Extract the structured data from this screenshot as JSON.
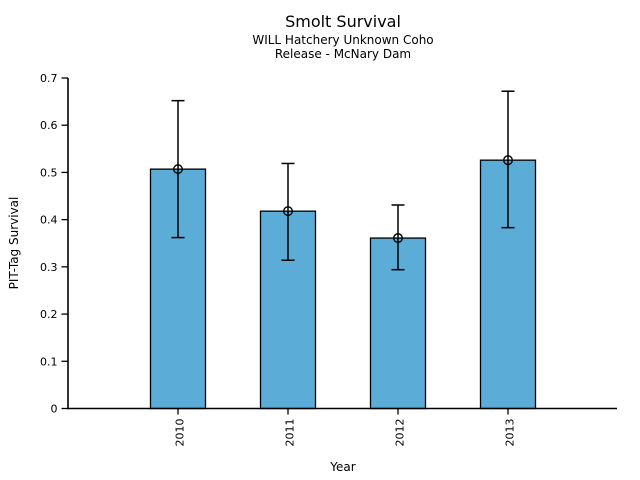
{
  "chart_data": {
    "type": "bar",
    "title": "Smolt Survival",
    "subtitle1": "WILL Hatchery Unknown Coho",
    "subtitle2": "Release - McNary Dam",
    "xlabel": "Year",
    "ylabel": "PIT-Tag Survival",
    "categories": [
      "2010",
      "2011",
      "2012",
      "2013"
    ],
    "values": [
      0.507,
      0.418,
      0.361,
      0.526
    ],
    "error_low": [
      0.362,
      0.314,
      0.294,
      0.383
    ],
    "error_high": [
      0.652,
      0.519,
      0.431,
      0.672
    ],
    "ylim": [
      0,
      0.7
    ],
    "ytick_labels": [
      "0",
      "0.1",
      "0.2",
      "0.3",
      "0.4",
      "0.5",
      "0.6",
      "0.7"
    ],
    "marker": "open-circle",
    "colors": {
      "bar_fill": "#5BACD7",
      "bar_edge": "#000000",
      "error_bar": "#000000",
      "axis": "#000000",
      "text": "#000000",
      "background": "#ffffff"
    },
    "legend": "none",
    "grid": "off"
  }
}
